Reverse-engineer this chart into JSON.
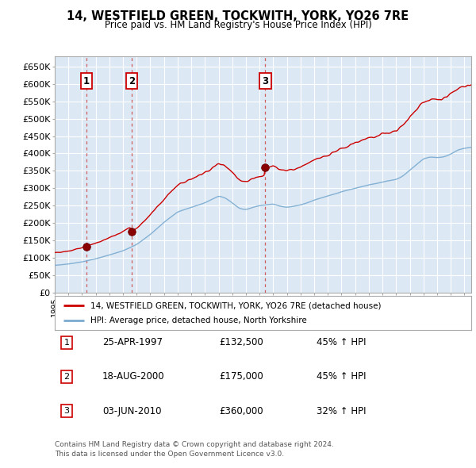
{
  "title": "14, WESTFIELD GREEN, TOCKWITH, YORK, YO26 7RE",
  "subtitle": "Price paid vs. HM Land Registry's House Price Index (HPI)",
  "property_label": "14, WESTFIELD GREEN, TOCKWITH, YORK, YO26 7RE (detached house)",
  "hpi_label": "HPI: Average price, detached house, North Yorkshire",
  "footer1": "Contains HM Land Registry data © Crown copyright and database right 2024.",
  "footer2": "This data is licensed under the Open Government Licence v3.0.",
  "sales": [
    {
      "num": 1,
      "date_label": "25-APR-1997",
      "price": 132500,
      "year": 1997.32,
      "hpi_pct": "45% ↑ HPI"
    },
    {
      "num": 2,
      "date_label": "18-AUG-2000",
      "price": 175000,
      "year": 2000.63,
      "hpi_pct": "45% ↑ HPI"
    },
    {
      "num": 3,
      "date_label": "03-JUN-2010",
      "price": 360000,
      "year": 2010.42,
      "hpi_pct": "32% ↑ HPI"
    }
  ],
  "ylim": [
    0,
    680000
  ],
  "yticks": [
    0,
    50000,
    100000,
    150000,
    200000,
    250000,
    300000,
    350000,
    400000,
    450000,
    500000,
    550000,
    600000,
    650000
  ],
  "xlim_start": 1995.0,
  "xlim_end": 2025.5,
  "property_color": "#cc0000",
  "hpi_color": "#7aaad0",
  "background_color": "#dce9f5",
  "plot_bg": "#dce9f5",
  "grid_color": "#ffffff",
  "sale_marker_color": "#880000",
  "dashed_line_color": "#cc4444"
}
